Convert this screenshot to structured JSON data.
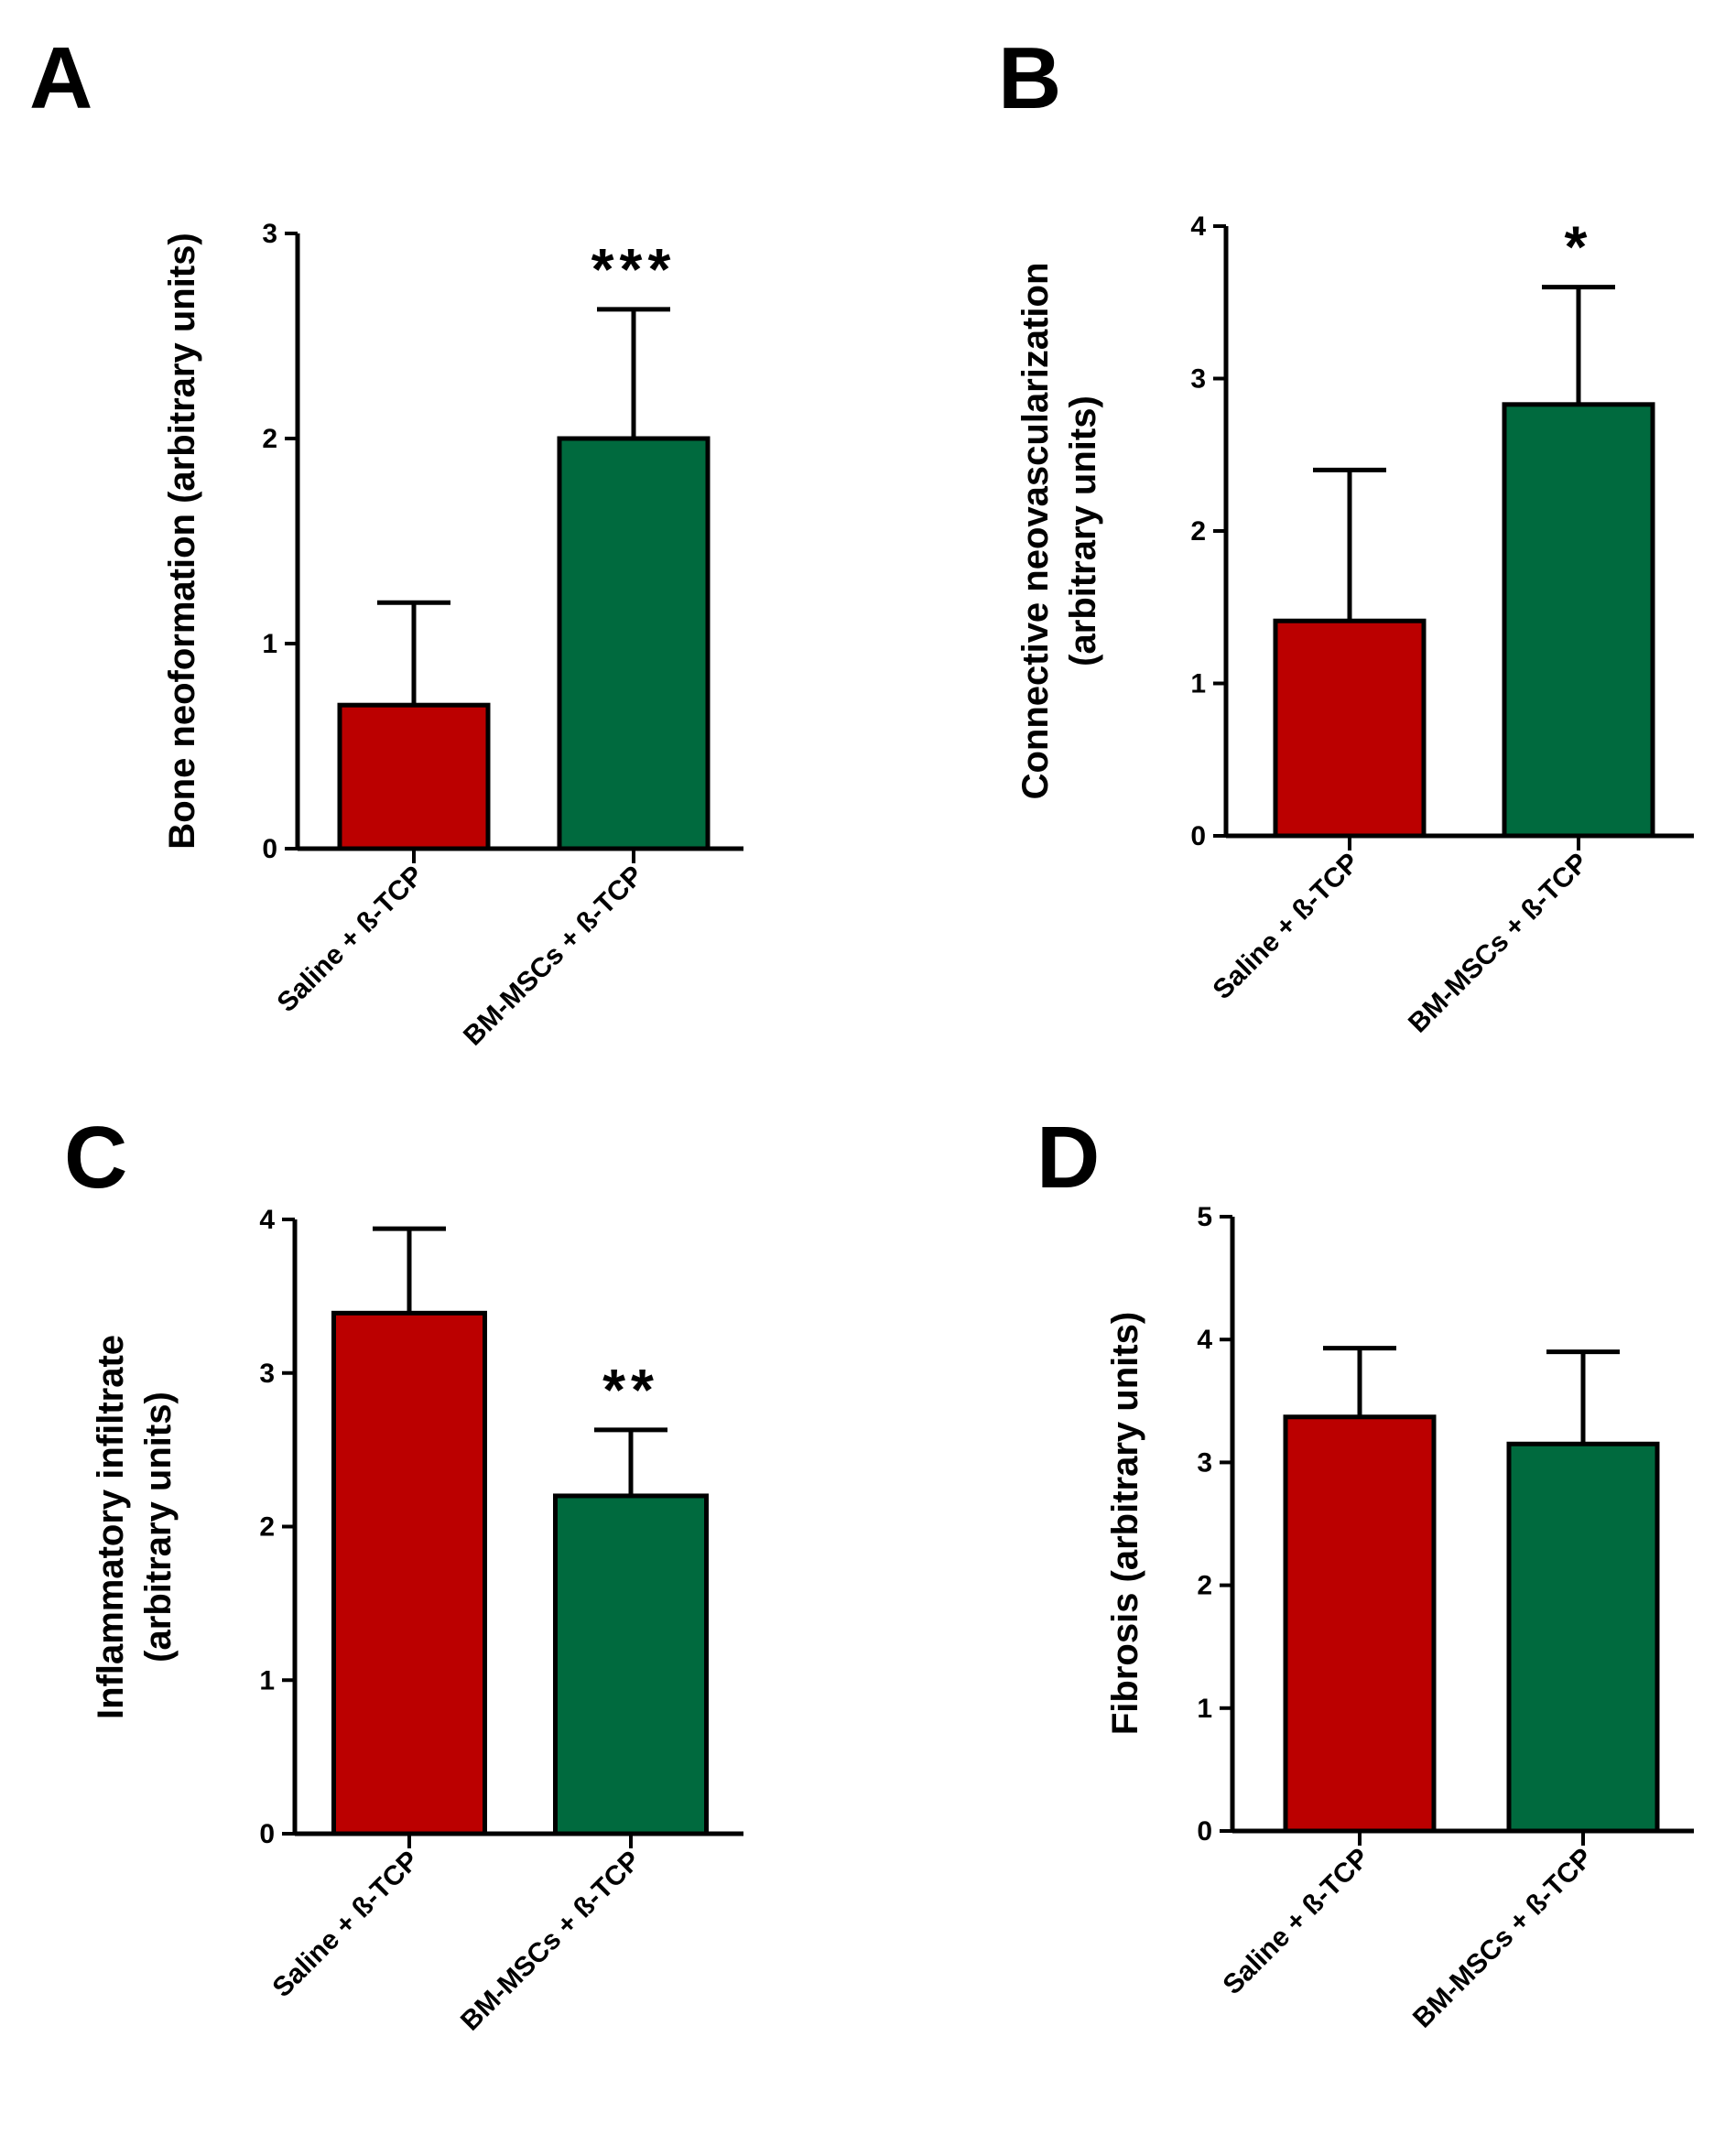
{
  "figure": {
    "bar_colors": {
      "saline": "#BB0000",
      "bmmscs": "#006A3E"
    },
    "axis_color": "#000000"
  },
  "chart_data": [
    {
      "panel": "A",
      "type": "bar",
      "categories": [
        "Saline + ß-TCP",
        "BM-MSCs + ß-TCP"
      ],
      "values": [
        0.7,
        2.0
      ],
      "errors": [
        0.5,
        0.63
      ],
      "significance": [
        "",
        "***"
      ],
      "ylabel": "Bone neoformation (arbitrary units)",
      "ylabel_lines": [
        "Bone neoformation (arbitrary units)"
      ],
      "ylim": [
        0,
        3
      ],
      "yticks": [
        0,
        1,
        2,
        3
      ],
      "grid": false,
      "colors": [
        "#BB0000",
        "#006A3E"
      ]
    },
    {
      "panel": "B",
      "type": "bar",
      "categories": [
        "Saline + ß-TCP",
        "BM-MSCs + ß-TCP"
      ],
      "values": [
        1.41,
        2.83
      ],
      "errors": [
        0.99,
        0.77
      ],
      "significance": [
        "",
        "*"
      ],
      "ylabel": "Connective neovascularization (arbitrary units)",
      "ylabel_lines": [
        "Connective neovascularization",
        "(arbitrary units)"
      ],
      "ylim": [
        0,
        4
      ],
      "yticks": [
        0,
        1,
        2,
        3,
        4
      ],
      "grid": false,
      "colors": [
        "#BB0000",
        "#006A3E"
      ]
    },
    {
      "panel": "C",
      "type": "bar",
      "categories": [
        "Saline + ß-TCP",
        "BM-MSCs + ß-TCP"
      ],
      "values": [
        3.39,
        2.2
      ],
      "errors": [
        0.55,
        0.43
      ],
      "significance": [
        "",
        "**"
      ],
      "ylabel": "Inflammatory infiltrate (arbitrary units)",
      "ylabel_lines": [
        "Inflammatory infiltrate",
        "(arbitrary units)"
      ],
      "ylim": [
        0,
        4
      ],
      "yticks": [
        0,
        1,
        2,
        3,
        4
      ],
      "grid": false,
      "colors": [
        "#BB0000",
        "#006A3E"
      ]
    },
    {
      "panel": "D",
      "type": "bar",
      "categories": [
        "Saline + ß-TCP",
        "BM-MSCs + ß-TCP"
      ],
      "values": [
        3.37,
        3.15
      ],
      "errors": [
        0.56,
        0.75
      ],
      "significance": [
        "",
        ""
      ],
      "ylabel": "Fibrosis (arbitrary units)",
      "ylabel_lines": [
        "Fibrosis (arbitrary units)"
      ],
      "ylim": [
        0,
        5
      ],
      "yticks": [
        0,
        1,
        2,
        3,
        4,
        5
      ],
      "grid": false,
      "colors": [
        "#BB0000",
        "#006A3E"
      ]
    }
  ]
}
